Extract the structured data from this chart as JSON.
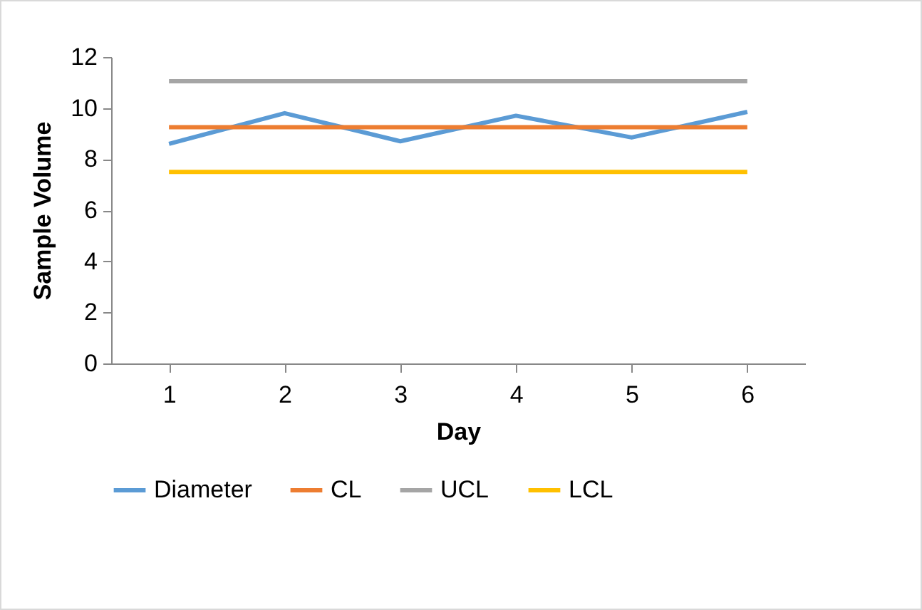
{
  "chart_data": {
    "type": "line",
    "xlabel": "Day",
    "ylabel": "Sample Volume",
    "categories": [
      "1",
      "2",
      "3",
      "4",
      "5",
      "6"
    ],
    "ylim": [
      0,
      12
    ],
    "yticks": [
      0,
      2,
      4,
      6,
      8,
      10,
      12
    ],
    "grid": false,
    "legend": "bottom",
    "marker": "none",
    "line_style": "solid",
    "series": [
      {
        "name": "Diameter",
        "color": "#5b9bd5",
        "values": [
          8.6,
          9.8,
          8.7,
          9.7,
          8.85,
          9.85
        ]
      },
      {
        "name": "CL",
        "color": "#ed7d31",
        "values": [
          9.25,
          9.25,
          9.25,
          9.25,
          9.25,
          9.25
        ]
      },
      {
        "name": "UCL",
        "color": "#a5a5a5",
        "values": [
          11.05,
          11.05,
          11.05,
          11.05,
          11.05,
          11.05
        ]
      },
      {
        "name": "LCL",
        "color": "#ffc000",
        "values": [
          7.5,
          7.5,
          7.5,
          7.5,
          7.5,
          7.5
        ]
      }
    ]
  }
}
